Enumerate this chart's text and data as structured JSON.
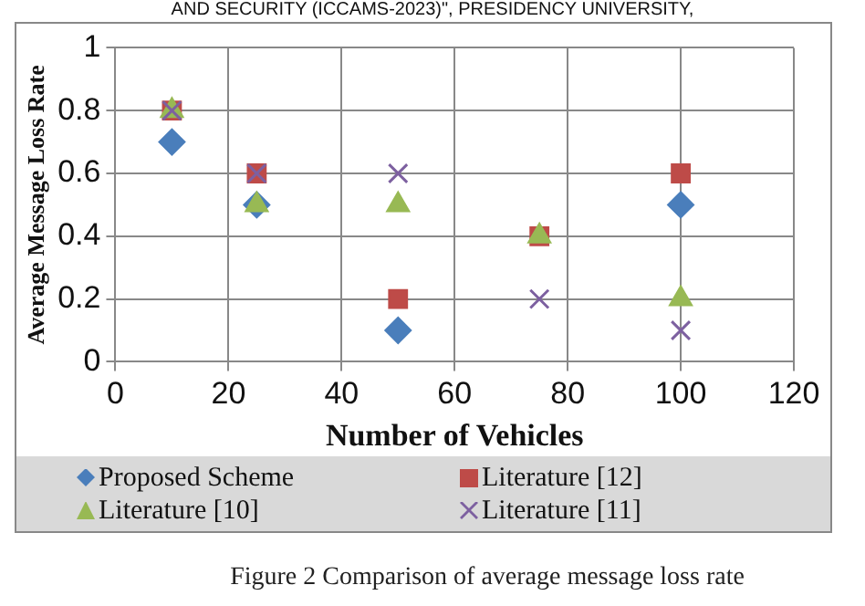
{
  "chart_data": {
    "type": "scatter",
    "xlabel": "Number of Vehicles",
    "ylabel": "Average Message Loss Rate",
    "annotations": [
      "AND SECURITY (ICCAMS-2023)\", PRESIDENCY UNIVERSITY,",
      "Figure 2 Comparison of average message loss rate"
    ],
    "x": [
      10,
      25,
      50,
      75,
      100
    ],
    "series": [
      {
        "name": "Proposed Scheme",
        "color": "#4a7ebb",
        "marker": "diamond",
        "values": [
          0.7,
          0.5,
          0.1,
          null,
          0.5
        ]
      },
      {
        "name": "Literature [12]",
        "color": "#be4b48",
        "marker": "square",
        "values": [
          0.8,
          0.6,
          0.2,
          0.4,
          0.6
        ]
      },
      {
        "name": "Literature [10]",
        "color": "#98b954",
        "marker": "triangle",
        "values": [
          0.8,
          0.5,
          0.5,
          0.4,
          0.2
        ]
      },
      {
        "name": "Literature [11]",
        "color": "#7d60a0",
        "marker": "cross",
        "values": [
          0.8,
          0.6,
          0.6,
          0.2,
          0.1
        ]
      }
    ],
    "xlim": [
      0,
      120
    ],
    "xticks": [
      0,
      20,
      40,
      60,
      80,
      100,
      120
    ],
    "ylim": [
      0,
      1
    ],
    "yticks": [
      0,
      0.2,
      0.4,
      0.6,
      0.8,
      1
    ],
    "grid": true,
    "legend": "bottom"
  }
}
